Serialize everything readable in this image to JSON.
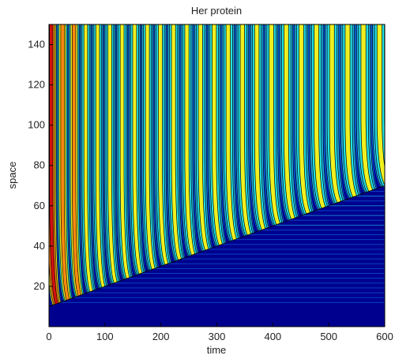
{
  "chart_data": {
    "type": "heatmap",
    "title": "Her protein",
    "xlabel": "time",
    "ylabel": "space",
    "xlim": [
      0,
      600
    ],
    "ylim": [
      0,
      150
    ],
    "x_ticks": [
      "0",
      "100",
      "200",
      "300",
      "400",
      "500",
      "600"
    ],
    "y_ticks": [
      "20",
      "40",
      "60",
      "80",
      "100",
      "120",
      "140"
    ],
    "grid": false,
    "legend": "none",
    "colormap": [
      "#00008f",
      "#0a5fd6",
      "#1fb0e8",
      "#22e3e3",
      "#f0f020",
      "#ff8a10",
      "#d21010"
    ],
    "contour_line_color": "#000000",
    "wavefront": {
      "start": {
        "time": 0,
        "space": 10
      },
      "end": {
        "time": 600,
        "space": 70
      }
    },
    "oscillation": {
      "initial_period_time": 20,
      "final_period_time": 30,
      "stripe_count_above_front": 28
    }
  }
}
